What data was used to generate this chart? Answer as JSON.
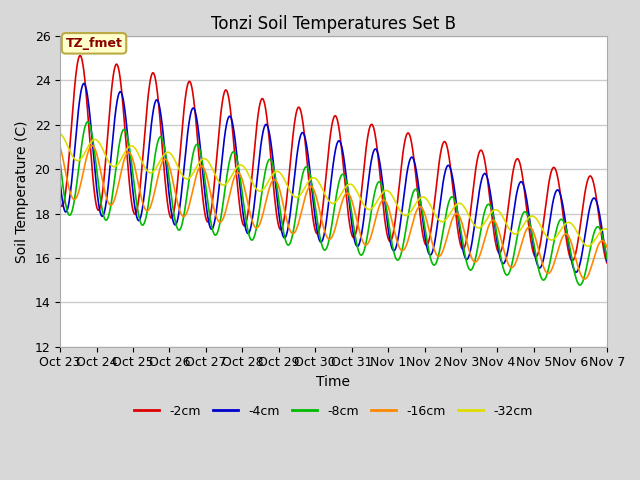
{
  "title": "Tonzi Soil Temperatures Set B",
  "xlabel": "Time",
  "ylabel": "Soil Temperature (C)",
  "ylim": [
    12,
    26
  ],
  "annotation_label": "TZ_fmet",
  "annotation_bg": "#ffffcc",
  "annotation_border": "#bbaa44",
  "annotation_text_color": "#880000",
  "colors": {
    "-2cm": "#dd0000",
    "-4cm": "#0000cc",
    "-8cm": "#00bb00",
    "-16cm": "#ff8800",
    "-32cm": "#dddd00"
  },
  "legend_order": [
    "-2cm",
    "-4cm",
    "-8cm",
    "-16cm",
    "-32cm"
  ],
  "xtick_labels": [
    "Oct 23",
    "Oct 24",
    "Oct 25",
    "Oct 26",
    "Oct 27",
    "Oct 28",
    "Oct 29",
    "Oct 30",
    "Oct 31",
    "Nov 1",
    "Nov 2",
    "Nov 3",
    "Nov 4",
    "Nov 5",
    "Nov 6",
    "Nov 7"
  ],
  "fig_bg": "#d8d8d8",
  "plot_bg": "#ffffff",
  "grid_color": "#cccccc",
  "title_fontsize": 12,
  "axis_label_fontsize": 10,
  "tick_fontsize": 9
}
